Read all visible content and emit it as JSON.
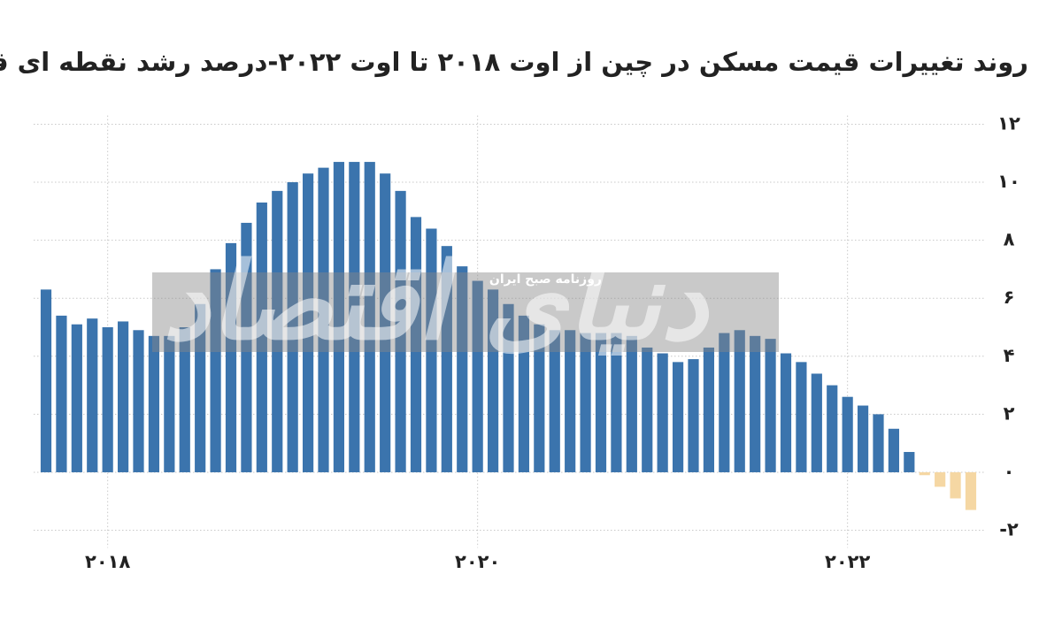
{
  "chart_data": {
    "type": "bar",
    "title": "روند تغییرات قیمت مسکن در چین از اوت ۲۰۱۸ تا اوت ۲۰۲۲-درصد رشد نقطه ای قیمت",
    "watermark": "دنیای اقتصاد",
    "watermark_subtitle": "روزنامه صبح ایران",
    "categories": [
      null,
      null,
      null,
      null,
      "۲۰۱۸",
      null,
      null,
      null,
      null,
      null,
      null,
      null,
      null,
      null,
      null,
      null,
      null,
      null,
      null,
      null,
      null,
      null,
      null,
      null,
      null,
      null,
      null,
      null,
      "۲۰۲۰",
      null,
      null,
      null,
      null,
      null,
      null,
      null,
      null,
      null,
      null,
      null,
      null,
      null,
      null,
      null,
      null,
      null,
      null,
      null,
      null,
      null,
      null,
      null,
      "۲۰۲۲",
      null,
      null,
      null,
      null,
      null,
      null,
      null,
      null
    ],
    "values": [
      6.3,
      5.4,
      5.1,
      5.3,
      5.0,
      5.2,
      4.9,
      4.7,
      4.7,
      5.0,
      5.8,
      7.0,
      7.9,
      8.6,
      9.3,
      9.7,
      10.0,
      10.3,
      10.5,
      10.7,
      10.7,
      10.7,
      10.3,
      9.7,
      8.8,
      8.4,
      7.8,
      7.1,
      6.6,
      6.3,
      5.8,
      5.4,
      5.1,
      4.9,
      4.9,
      4.8,
      4.8,
      4.8,
      4.7,
      4.3,
      4.1,
      3.8,
      3.9,
      4.3,
      4.8,
      4.9,
      4.7,
      4.6,
      4.1,
      3.8,
      3.4,
      3.0,
      2.6,
      2.3,
      2.0,
      1.5,
      0.7,
      -0.1,
      -0.5,
      -0.9,
      -1.3
    ],
    "color": "#3b74ad",
    "negative_color": "#f5d7a3",
    "ylim": [
      -2.3,
      12.3
    ],
    "yticks": [
      {
        "value": 12,
        "label": "۱۲"
      },
      {
        "value": 10,
        "label": "۱۰"
      },
      {
        "value": 8,
        "label": "۸"
      },
      {
        "value": 6,
        "label": "۶"
      },
      {
        "value": 4,
        "label": "۴"
      },
      {
        "value": 2,
        "label": "۲"
      },
      {
        "value": 0,
        "label": "۰"
      },
      {
        "value": -2,
        "label": "-۲"
      }
    ],
    "grid": true
  }
}
